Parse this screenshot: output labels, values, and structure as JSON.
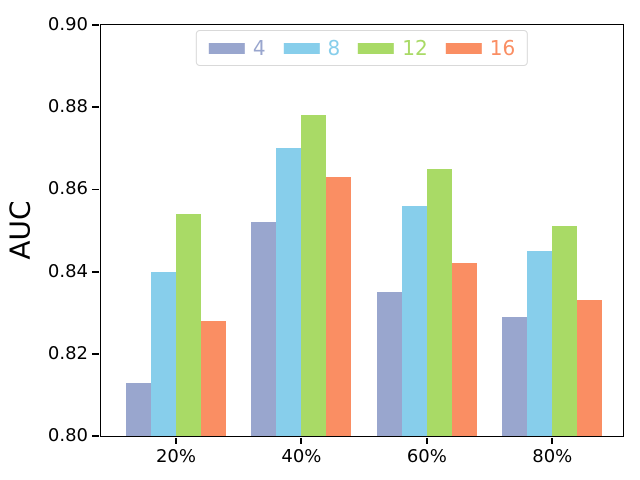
{
  "chart_data": {
    "type": "bar",
    "title": "",
    "xlabel": "",
    "ylabel": "AUC",
    "categories": [
      "20%",
      "40%",
      "60%",
      "80%"
    ],
    "series": [
      {
        "name": "4",
        "color": "#99a6ce",
        "values": [
          0.813,
          0.852,
          0.835,
          0.829
        ]
      },
      {
        "name": "8",
        "color": "#87ceeb",
        "values": [
          0.84,
          0.87,
          0.856,
          0.845
        ]
      },
      {
        "name": "12",
        "color": "#a9da66",
        "values": [
          0.854,
          0.878,
          0.865,
          0.851
        ]
      },
      {
        "name": "16",
        "color": "#fa8e63",
        "values": [
          0.828,
          0.863,
          0.842,
          0.833
        ]
      }
    ],
    "ylim": [
      0.8,
      0.9
    ],
    "yticks": [
      "0.80",
      "0.82",
      "0.84",
      "0.86",
      "0.88",
      "0.90"
    ],
    "grid": false,
    "legend_position": "upper center",
    "background": "#ffffff",
    "axis_color": "#000000"
  }
}
